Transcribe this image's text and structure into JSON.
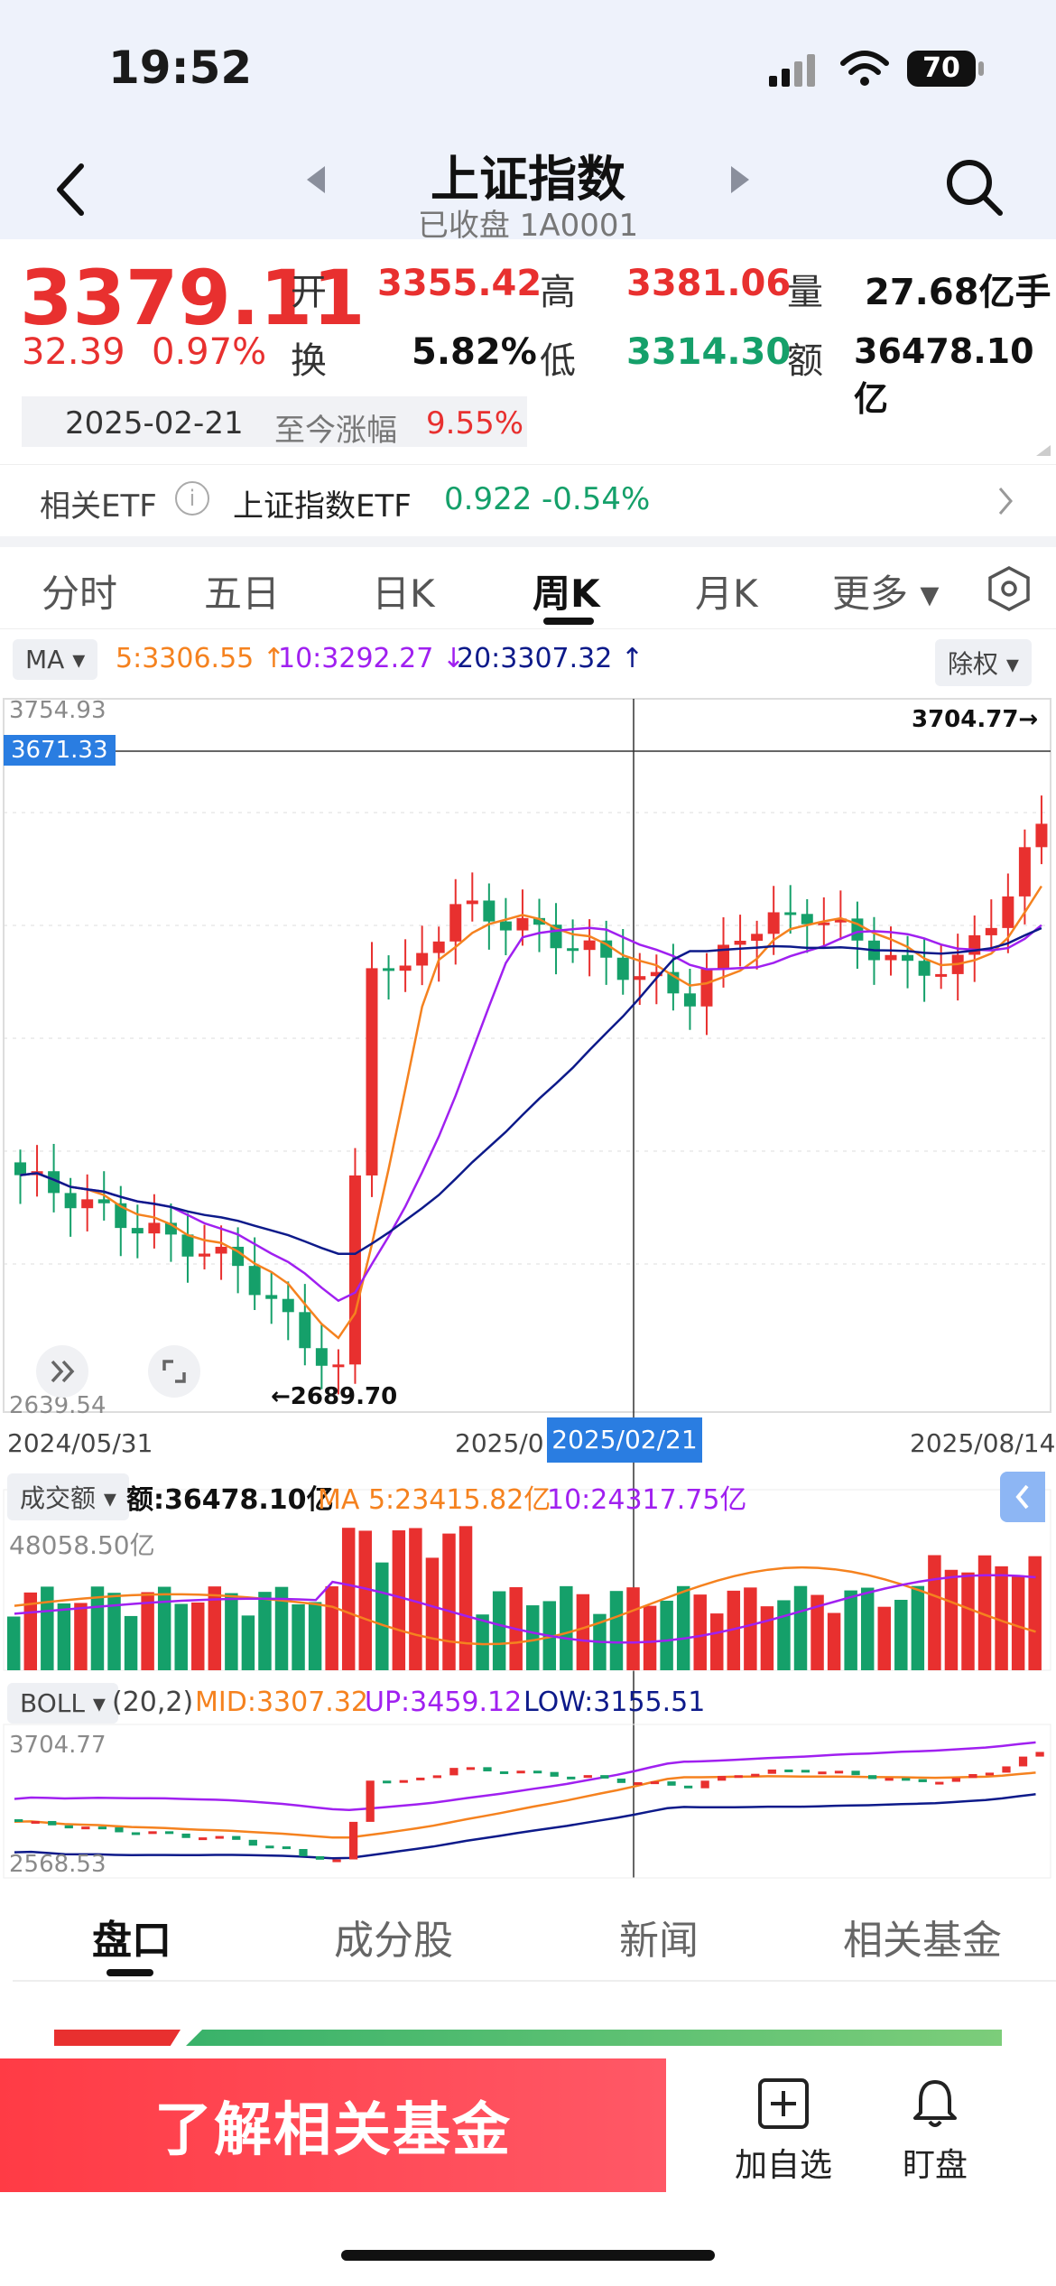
{
  "status_bar": {
    "time": "19:52",
    "battery": "70"
  },
  "header": {
    "title": "上证指数",
    "subtitle": "已收盘 1A0001"
  },
  "quote": {
    "price": "3379.11",
    "change": "32.39",
    "change_pct": "0.97%",
    "open_label": "开",
    "open": "3355.42",
    "high_label": "高",
    "high": "3381.06",
    "volume_label": "量",
    "volume": "27.68亿手",
    "turnover_label": "换",
    "turnover": "5.82%",
    "low_label": "低",
    "low": "3314.30",
    "amount_label": "额",
    "amount": "36478.10亿",
    "date": "2025-02-21",
    "since_label": "至今涨幅",
    "since_value": "9.55%"
  },
  "etf": {
    "label": "相关ETF",
    "name": "上证指数ETF",
    "price": "0.922",
    "change": "-0.54%"
  },
  "tabs": [
    {
      "label": "分时"
    },
    {
      "label": "五日"
    },
    {
      "label": "日K"
    },
    {
      "label": "周K"
    },
    {
      "label": "月K"
    },
    {
      "label": "更多 ▾"
    }
  ],
  "ma_row": {
    "selector": "MA ▾",
    "ma5": "5:3306.55 ↑",
    "ma10": "10:3292.27 ↓",
    "ma20": "20:3307.32 ↑",
    "adjust": "除权 ▾"
  },
  "colors": {
    "up": "#e8302f",
    "down": "#15a06a",
    "ma5": "#f5821f",
    "ma10": "#a020f0",
    "ma20": "#0d1a8a",
    "accent": "#2a7de1"
  },
  "chart_data": {
    "type": "candlestick",
    "y_max_label": "3754.93",
    "y_min_label": "2639.54",
    "crosshair_value": "3671.33",
    "max_marker": "3704.77→",
    "min_marker": "←2689.70",
    "x_labels": {
      "start": "2024/05/31",
      "mid_partial": "2025/0",
      "crosshair": "2025/02/21",
      "end": "2025/08/14"
    },
    "volume": {
      "selector": "成交额 ▾",
      "amount": "额:36478.10亿",
      "ma5": "MA 5:23415.82亿",
      "ma10": "10:24317.75亿",
      "max_label": "48058.50亿"
    },
    "boll": {
      "selector": "BOLL ▾",
      "params": "(20,2)",
      "mid": "MID:3307.32",
      "up": "UP:3459.12",
      "low": "LOW:3155.51",
      "max_label": "3704.77",
      "min_label": "2568.53"
    }
  },
  "bottom_tabs": [
    {
      "label": "盘口"
    },
    {
      "label": "成分股"
    },
    {
      "label": "新闻"
    },
    {
      "label": "相关基金"
    }
  ],
  "footer": {
    "cta": "了解相关基金",
    "add_label": "加自选",
    "watch_label": "盯盘"
  }
}
